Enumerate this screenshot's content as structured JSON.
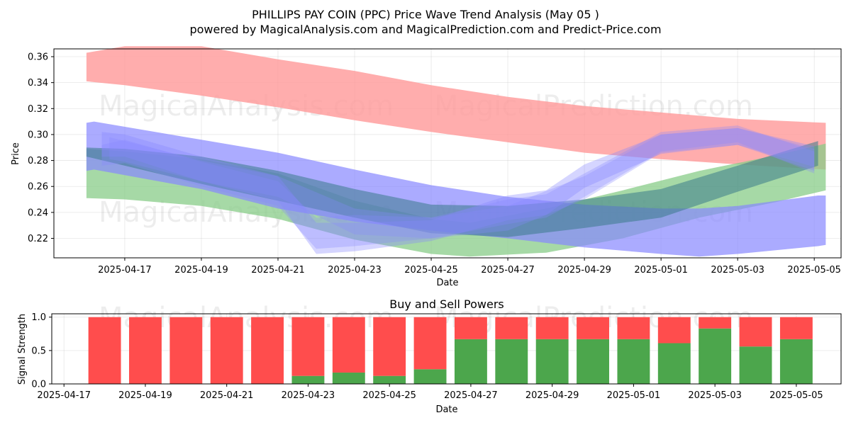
{
  "title_line1": "PHILLIPS PAY COIN (PPC) Price Wave Trend Analysis (May 05 )",
  "title_line2": "powered by MagicalAnalysis.com and MagicalPrediction.com and Predict-Price.com",
  "watermarks": [
    "MagicalAnalysis.com",
    "MagicalPrediction.com"
  ],
  "colors": {
    "red": "#ff4d4d",
    "green": "#4ca64c",
    "blue": "#6666ff",
    "band_red": "#ff9999",
    "band_green": "#88cc88",
    "band_blue": "#8888ff",
    "teal": "#3a7a8a"
  },
  "chart_data": [
    {
      "type": "area",
      "title": "",
      "xlabel": "Date",
      "ylabel": "Price",
      "ylim": [
        0.205,
        0.366
      ],
      "xlim": [
        -0.85,
        19.7
      ],
      "x_origin_date": "2025-04-16",
      "xtick_labels": [
        "2025-04-17",
        "2025-04-19",
        "2025-04-21",
        "2025-04-23",
        "2025-04-25",
        "2025-04-27",
        "2025-04-29",
        "2025-05-01",
        "2025-05-03",
        "2025-05-05"
      ],
      "xtick_positions": [
        1,
        3,
        5,
        7,
        9,
        11,
        13,
        15,
        17,
        19
      ],
      "ytick_labels": [
        "0.22",
        "0.24",
        "0.26",
        "0.28",
        "0.30",
        "0.32",
        "0.34",
        "0.36"
      ],
      "ytick_values": [
        0.22,
        0.24,
        0.26,
        0.28,
        0.3,
        0.32,
        0.34,
        0.36
      ],
      "grid": true,
      "series": [
        {
          "name": "red-band",
          "color": "band_red",
          "opacity": 0.8,
          "x": [
            0,
            1,
            3,
            5,
            7,
            9,
            11,
            13,
            15,
            17,
            19.3
          ],
          "upper": [
            0.363,
            0.368,
            0.368,
            0.358,
            0.349,
            0.338,
            0.329,
            0.322,
            0.317,
            0.312,
            0.309
          ],
          "lower": [
            0.341,
            0.338,
            0.33,
            0.321,
            0.311,
            0.302,
            0.294,
            0.286,
            0.281,
            0.277,
            0.273
          ]
        },
        {
          "name": "green-band",
          "color": "band_green",
          "opacity": 0.75,
          "x": [
            0,
            1,
            3,
            5,
            7,
            9,
            10,
            12,
            14,
            16,
            18,
            19.3
          ],
          "upper": [
            0.289,
            0.287,
            0.281,
            0.27,
            0.249,
            0.235,
            0.232,
            0.243,
            0.257,
            0.272,
            0.284,
            0.293
          ],
          "lower": [
            0.251,
            0.25,
            0.245,
            0.235,
            0.219,
            0.208,
            0.206,
            0.209,
            0.22,
            0.236,
            0.248,
            0.257
          ]
        },
        {
          "name": "blue-band-wide",
          "color": "band_blue",
          "opacity": 0.7,
          "x": [
            0,
            0.2,
            3,
            5,
            7,
            9,
            11,
            13,
            15,
            16,
            17,
            19.1,
            19.3
          ],
          "upper": [
            0.309,
            0.31,
            0.296,
            0.286,
            0.273,
            0.261,
            0.252,
            0.246,
            0.243,
            0.243,
            0.245,
            0.253,
            0.253
          ],
          "lower": [
            0.272,
            0.273,
            0.258,
            0.243,
            0.233,
            0.226,
            0.22,
            0.213,
            0.208,
            0.206,
            0.208,
            0.214,
            0.215
          ]
        },
        {
          "name": "teal-band",
          "color": "teal",
          "opacity": 0.55,
          "x": [
            0,
            1,
            3,
            5,
            7,
            9,
            11,
            13,
            15,
            17,
            19.1
          ],
          "upper": [
            0.29,
            0.289,
            0.283,
            0.272,
            0.258,
            0.246,
            0.245,
            0.25,
            0.258,
            0.276,
            0.295
          ],
          "lower": [
            0.283,
            0.276,
            0.262,
            0.249,
            0.236,
            0.224,
            0.221,
            0.228,
            0.236,
            0.256,
            0.276
          ]
        },
        {
          "name": "blue-wave-1",
          "color": "band_blue",
          "opacity": 0.35,
          "x": [
            0.4,
            1,
            3,
            5,
            6,
            7,
            9,
            11,
            12,
            13,
            15,
            17,
            19
          ],
          "upper": [
            0.302,
            0.3,
            0.283,
            0.268,
            0.232,
            0.232,
            0.234,
            0.253,
            0.257,
            0.277,
            0.3,
            0.305,
            0.291
          ],
          "lower": [
            0.283,
            0.283,
            0.264,
            0.249,
            0.208,
            0.21,
            0.218,
            0.234,
            0.238,
            0.259,
            0.285,
            0.292,
            0.272
          ]
        },
        {
          "name": "blue-wave-2",
          "color": "band_blue",
          "opacity": 0.3,
          "x": [
            0.4,
            1,
            3,
            5,
            6,
            7,
            9,
            11,
            12,
            13,
            15,
            17,
            19
          ],
          "upper": [
            0.292,
            0.296,
            0.279,
            0.264,
            0.236,
            0.238,
            0.236,
            0.25,
            0.254,
            0.27,
            0.302,
            0.307,
            0.287
          ],
          "lower": [
            0.276,
            0.278,
            0.26,
            0.245,
            0.212,
            0.214,
            0.22,
            0.231,
            0.236,
            0.252,
            0.287,
            0.294,
            0.27
          ]
        },
        {
          "name": "purple-wave",
          "color": "band_blue",
          "opacity": 0.3,
          "x": [
            0.6,
            1,
            3,
            5,
            7,
            9,
            11,
            13,
            15,
            17,
            19
          ],
          "upper": [
            0.298,
            0.295,
            0.28,
            0.268,
            0.243,
            0.236,
            0.245,
            0.268,
            0.3,
            0.305,
            0.289
          ],
          "lower": [
            0.281,
            0.279,
            0.264,
            0.252,
            0.223,
            0.22,
            0.226,
            0.25,
            0.286,
            0.292,
            0.275
          ]
        }
      ]
    },
    {
      "type": "bar",
      "title": "Buy and Sell Powers",
      "xlabel": "Date",
      "ylabel": "Signal Strength",
      "ylim": [
        0,
        1.05
      ],
      "xlim": [
        -0.3,
        19.1
      ],
      "x_origin_date": "2025-04-17",
      "categories": [
        "2025-04-18",
        "2025-04-19",
        "2025-04-20",
        "2025-04-21",
        "2025-04-22",
        "2025-04-23",
        "2025-04-24",
        "2025-04-25",
        "2025-04-26",
        "2025-04-27",
        "2025-04-28",
        "2025-04-29",
        "2025-04-30",
        "2025-05-01",
        "2025-05-02",
        "2025-05-03",
        "2025-05-04",
        "2025-05-05"
      ],
      "x": [
        1,
        2,
        3,
        4,
        5,
        6,
        7,
        8,
        9,
        10,
        11,
        12,
        13,
        14,
        15,
        16,
        17,
        18
      ],
      "series": [
        {
          "name": "Buy",
          "color": "green",
          "values": [
            0,
            0,
            0,
            0,
            0,
            0.12,
            0.17,
            0.12,
            0.22,
            0.67,
            0.67,
            0.67,
            0.67,
            0.67,
            0.61,
            0.83,
            0.56,
            0.67
          ]
        },
        {
          "name": "Sell",
          "color": "red",
          "values": [
            1,
            1,
            1,
            1,
            1,
            0.88,
            0.83,
            0.88,
            0.78,
            0.33,
            0.33,
            0.33,
            0.33,
            0.33,
            0.39,
            0.17,
            0.44,
            0.33
          ]
        }
      ],
      "xtick_labels": [
        "2025-04-17",
        "2025-04-19",
        "2025-04-21",
        "2025-04-23",
        "2025-04-25",
        "2025-04-27",
        "2025-04-29",
        "2025-05-01",
        "2025-05-03",
        "2025-05-05"
      ],
      "xtick_positions": [
        0,
        2,
        4,
        6,
        8,
        10,
        12,
        14,
        16,
        18
      ],
      "ytick_labels": [
        "0.0",
        "0.5",
        "1.0"
      ],
      "ytick_values": [
        0,
        0.5,
        1.0
      ],
      "grid": true
    }
  ]
}
